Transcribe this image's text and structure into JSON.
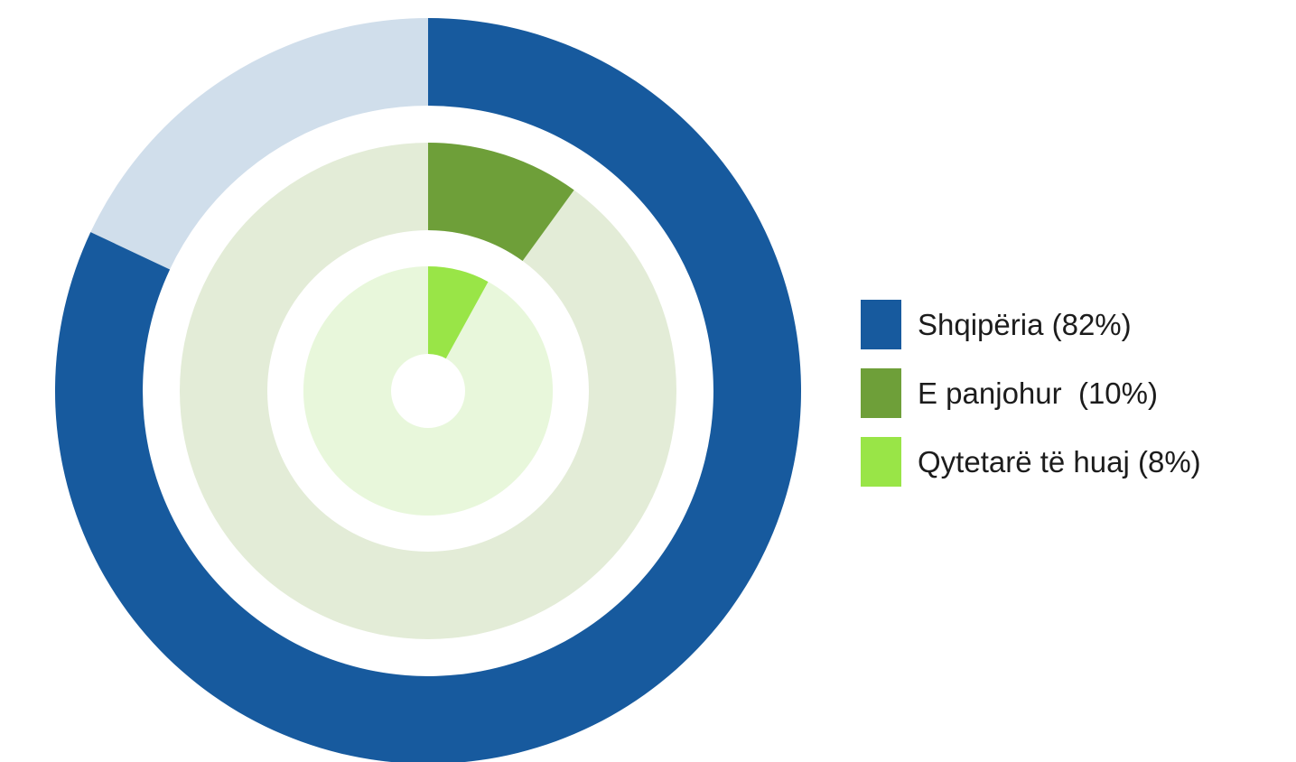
{
  "chart_data": {
    "type": "radial-bar",
    "series": [
      {
        "name": "Shqipëria (82%)",
        "value": 82,
        "color": "#175A9E",
        "track_color": "#D0DEEB"
      },
      {
        "name": "E panjohur  (10%)",
        "value": 10,
        "color": "#6E9F39",
        "track_color": "#E3ECD7"
      },
      {
        "name": "Qytetarë të huaj (8%)",
        "value": 8,
        "color": "#99E547",
        "track_color": "#E8F7DB"
      }
    ],
    "max": 100
  }
}
